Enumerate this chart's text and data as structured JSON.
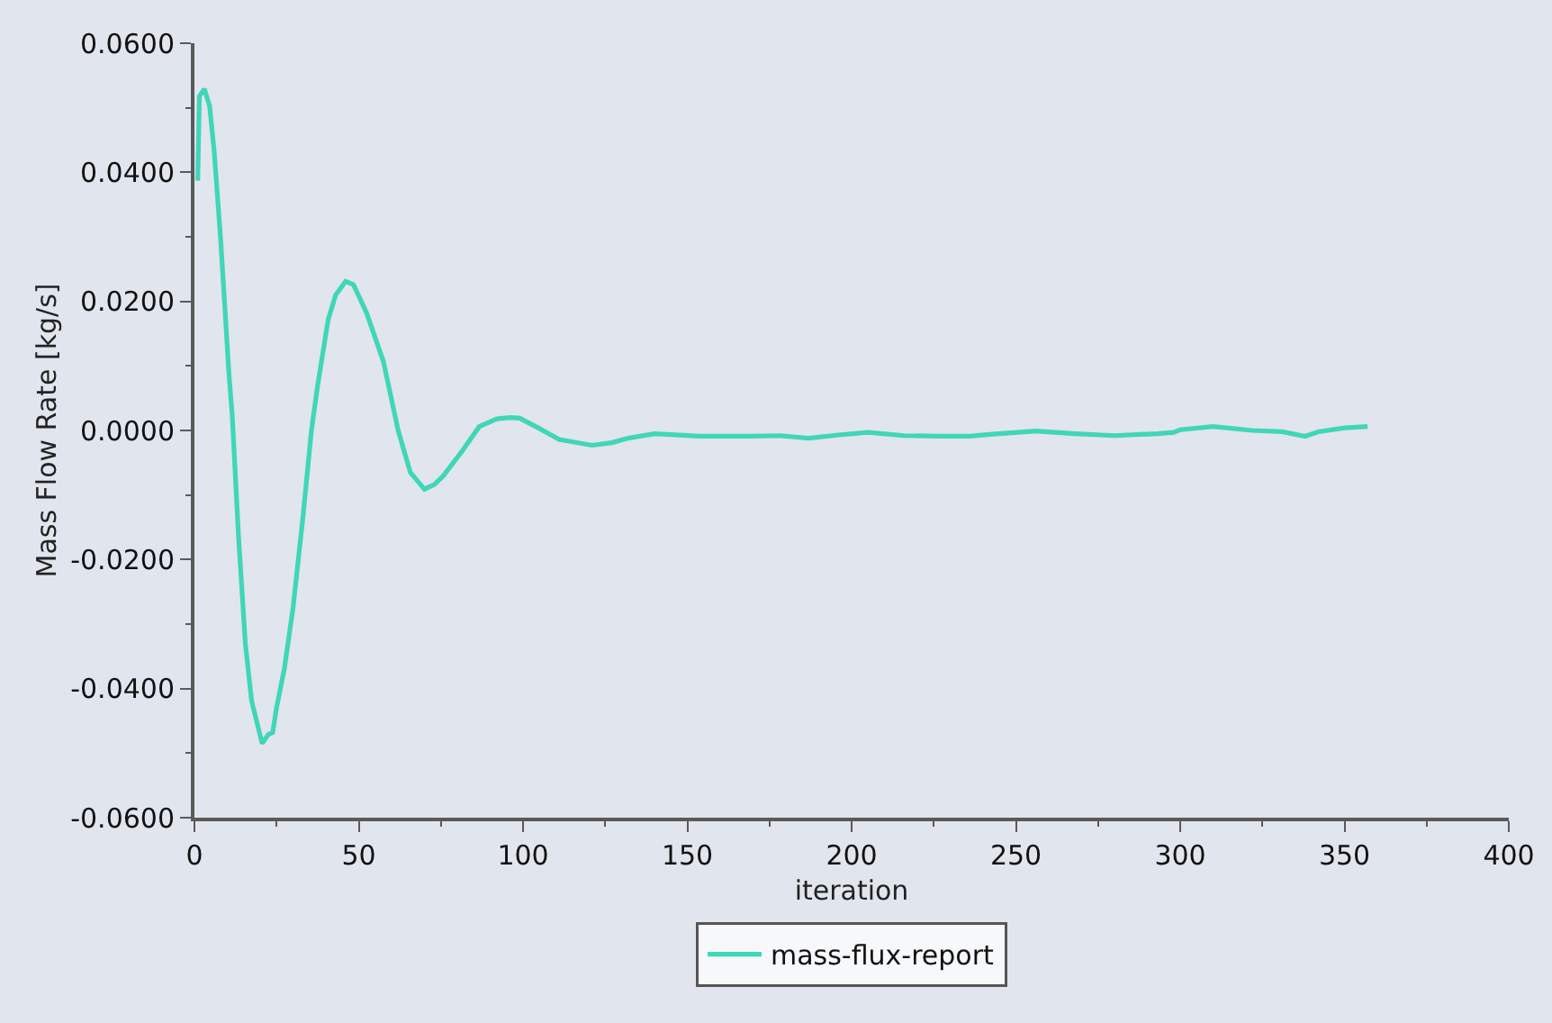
{
  "chart_data": {
    "type": "line",
    "xlabel": "iteration",
    "ylabel": "Mass Flow Rate [kg/s]",
    "x": [
      1,
      1.5,
      3,
      4.6,
      6,
      8,
      10.5,
      11.5,
      13.4,
      15.5,
      17.4,
      20.6,
      22.5,
      23.8,
      25,
      27.4,
      30,
      33,
      35.6,
      37.5,
      40.7,
      43,
      46,
      48.4,
      52.4,
      57.5,
      62,
      65.7,
      70,
      73,
      75.8,
      81.3,
      86.7,
      92,
      96,
      99,
      105,
      111,
      121,
      127,
      132,
      140,
      154,
      169,
      178,
      187,
      196,
      205,
      216,
      227,
      236,
      242,
      256,
      268,
      280,
      293,
      298,
      300,
      310,
      322,
      331,
      338,
      342,
      350,
      357
    ],
    "series": [
      {
        "name": "mass-flux-report",
        "color": "#40d6b8",
        "values": [
          0.0387,
          0.0518,
          0.0529,
          0.0503,
          0.0433,
          0.0294,
          0.0088,
          0.0023,
          -0.0163,
          -0.0331,
          -0.0419,
          -0.0485,
          -0.0471,
          -0.0468,
          -0.0429,
          -0.0368,
          -0.0275,
          -0.0135,
          0.0,
          0.007,
          0.0172,
          0.021,
          0.0231,
          0.0226,
          0.0182,
          0.0107,
          0.0,
          -0.0065,
          -0.0091,
          -0.0084,
          -0.007,
          -0.0033,
          0.0006,
          0.0018,
          0.002,
          0.0019,
          0.0003,
          -0.0014,
          -0.0023,
          -0.0019,
          -0.0012,
          -0.0005,
          -0.0009,
          -0.0009,
          -0.0008,
          -0.0012,
          -0.0007,
          -0.0003,
          -0.0008,
          -0.0009,
          -0.0009,
          -0.0006,
          -0.0001,
          -0.0005,
          -0.0008,
          -0.0005,
          -0.0003,
          0.0001,
          0.0006,
          0.0,
          -0.0002,
          -0.0009,
          -0.0002,
          0.0004,
          0.0006
        ]
      }
    ],
    "xlim": [
      0,
      400
    ],
    "xticks": [
      0,
      {
        "value": 25,
        "label": null
      },
      50,
      {
        "value": 75,
        "label": null
      },
      100,
      {
        "value": 125,
        "label": null
      },
      150,
      {
        "value": 175,
        "label": null
      },
      200,
      {
        "value": 225,
        "label": null
      },
      250,
      {
        "value": 275,
        "label": null
      },
      300,
      {
        "value": 325,
        "label": null
      },
      350,
      {
        "value": 375,
        "label": null
      },
      400
    ],
    "ylim": [
      -0.06,
      0.06
    ],
    "yticks": [
      {
        "value": -0.06,
        "label": "-0.0600"
      },
      {
        "value": -0.05,
        "label": null
      },
      {
        "value": -0.04,
        "label": "-0.0400"
      },
      {
        "value": -0.03,
        "label": null
      },
      {
        "value": -0.02,
        "label": "-0.0200"
      },
      {
        "value": -0.01,
        "label": null
      },
      {
        "value": 0,
        "label": "0.0000"
      },
      {
        "value": 0.01,
        "label": null
      },
      {
        "value": 0.02,
        "label": "0.0200"
      },
      {
        "value": 0.03,
        "label": null
      },
      {
        "value": 0.04,
        "label": "0.0400"
      },
      {
        "value": 0.05,
        "label": null
      },
      {
        "value": 0.06,
        "label": "0.0600"
      }
    ],
    "legend": "bottom",
    "line_style": "solid"
  }
}
